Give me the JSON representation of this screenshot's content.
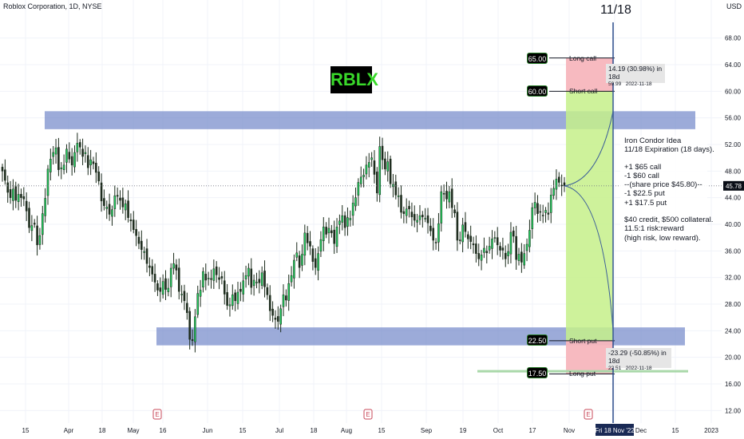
{
  "header": {
    "title": "Roblox Corporation, 1D, NYSE",
    "currency": "USD"
  },
  "expiry_title": "11/18",
  "ticker_badge": "RBLX",
  "note": {
    "lines": [
      "Iron Condor Idea",
      "11/18 Expiration (18 days).",
      "",
      "+1 $65 call",
      "-1 $60 call",
      "--(share price $45.80)--",
      "-1 $22.5 put",
      "+1 $17.5 put",
      "",
      "$40 credit, $500 collateral.",
      "11.5:1 risk:reward",
      "(high risk, low reward)."
    ]
  },
  "strikes": [
    {
      "price_label": "65.00",
      "name": "Long call",
      "value": 65
    },
    {
      "price_label": "60.00",
      "name": "Short call",
      "value": 60
    },
    {
      "price_label": "22.50",
      "name": "Short put",
      "value": 22.5
    },
    {
      "price_label": "17.50",
      "name": "Long put",
      "value": 17.5
    }
  ],
  "measure_up": {
    "text": "14.19 (30.98%) in 18d",
    "sub_price": "59.99",
    "sub_date": "2022-11-18"
  },
  "measure_down": {
    "text": "-23.29 (-50.85%) in 18d",
    "sub_price": "22.51",
    "sub_date": "2022-11-18"
  },
  "last_price_label": "45.78",
  "colors": {
    "up": "#26a69a",
    "down": "#131722",
    "zone_blue": "#7b8fcc",
    "zone_green": "#c5f08a",
    "zone_red": "#f7b6bd",
    "vline": "#2a4a8a",
    "cone": "#3d5f99",
    "support_green": "#a9d8a9"
  },
  "chart_data": {
    "type": "candlestick",
    "title": "Roblox Corporation, 1D, NYSE",
    "y_axis_ticks": [
      "68.00",
      "64.00",
      "60.00",
      "56.00",
      "52.00",
      "48.00",
      "44.00",
      "40.00",
      "36.00",
      "32.00",
      "28.00",
      "24.00",
      "20.00",
      "16.00",
      "12.00"
    ],
    "ylim": [
      10,
      71
    ],
    "x_axis_ticks": [
      "15",
      "Apr",
      "18",
      "May",
      "16",
      "Jun",
      "15",
      "Jul",
      "18",
      "Aug",
      "15",
      "Sep",
      "19",
      "Oct",
      "17",
      "Nov",
      "Fri 18 Nov '22",
      "Dec",
      "15",
      "2023"
    ],
    "last_close": 45.78,
    "earnings_markers": [
      "E",
      "E",
      "E"
    ],
    "zones": [
      {
        "name": "resistance",
        "from": 54.3,
        "to": 57.0
      },
      {
        "name": "support",
        "from": 21.8,
        "to": 24.5
      }
    ],
    "support_line": 17.9,
    "closes": [
      48,
      46.6,
      44.8,
      44,
      45.3,
      43.6,
      44.5,
      44,
      43.8,
      42,
      39.5,
      39.8,
      40,
      36.9,
      38.3,
      41.6,
      43.9,
      48.3,
      49.8,
      50.8,
      51.5,
      48.2,
      48.5,
      48.9,
      51.3,
      49.8,
      48.9,
      50.8,
      52.2,
      51.6,
      50.2,
      50.8,
      48.5,
      49.7,
      49.1,
      47.8,
      46.5,
      43.5,
      42.8,
      42.6,
      41.5,
      42.2,
      44.3,
      44.2,
      43.6,
      42.6,
      43.1,
      41,
      40.5,
      39.2,
      38.3,
      37.1,
      36.2,
      35.9,
      34.1,
      33.5,
      32.5,
      31.3,
      30.1,
      29.9,
      31.4,
      30.2,
      30.4,
      33.4,
      34.1,
      33.1,
      29.9,
      29.5,
      28.5,
      26.7,
      22.7,
      22.5,
      26.1,
      29.6,
      30.1,
      32.9,
      31.6,
      31.9,
      31.7,
      33.3,
      32.4,
      31.7,
      31.9,
      29.5,
      27.8,
      27.9,
      29.4,
      28.5,
      29.8,
      29.9,
      31.5,
      32.3,
      33.4,
      30.5,
      31.6,
      31.3,
      31.2,
      32.7,
      30.6,
      29.4,
      27,
      26.3,
      25.7,
      25.4,
      27.3,
      29.4,
      28.6,
      31.1,
      32.3,
      34.6,
      35.7,
      33.5,
      35.5,
      38.7,
      37.2,
      36.7,
      34.4,
      33.5,
      35.6,
      37.7,
      39.6,
      38.5,
      39.4,
      38.7,
      37.1,
      39.6,
      40.5,
      41.3,
      39.5,
      41,
      40.9,
      43.2,
      44,
      46.3,
      47.1,
      47.4,
      48.9,
      49.3,
      50,
      47.5,
      44.7,
      51.7,
      49.7,
      48.3,
      49.4,
      46.1,
      46,
      44.4,
      44.3,
      41.8,
      41.6,
      42.3,
      42.3,
      41.1,
      40.6,
      40.6,
      41.3,
      41.1,
      40.9,
      40.2,
      39,
      37.6,
      37.2,
      40.1,
      44.9,
      44.6,
      43.8,
      44.9,
      42.5,
      41.7,
      37.6,
      37.6,
      39.9,
      38.9,
      37.8,
      37.4,
      36.9,
      35.6,
      34.8,
      35.4,
      36.4,
      35.7,
      36.7,
      37.8,
      38,
      36.9,
      36.1,
      36.1,
      34.8,
      35.9,
      38.8,
      38.2,
      34.7,
      35.5,
      34.3,
      35.6,
      37,
      39.1,
      42.5,
      43.3,
      41.6,
      41.8,
      41.3,
      42.1,
      41.5,
      44.4,
      45.4,
      46.8,
      46.3,
      45.8,
      45.8
    ]
  }
}
